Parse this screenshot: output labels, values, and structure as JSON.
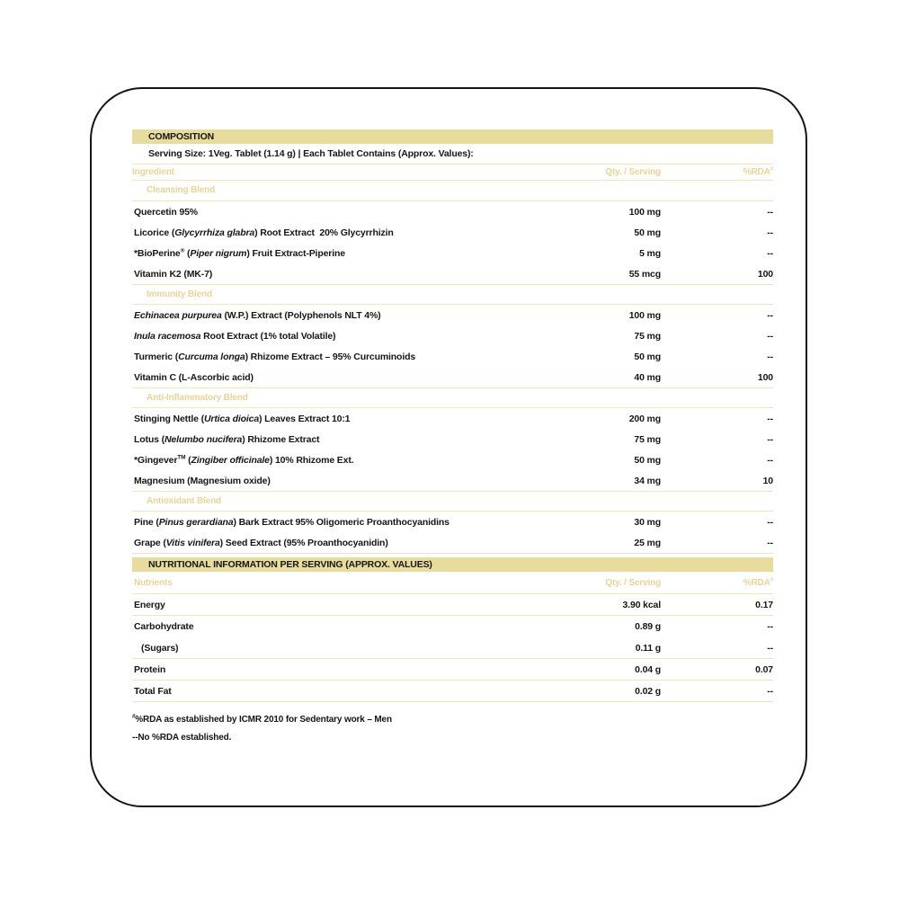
{
  "colors": {
    "bar_background": "#e7dc9c",
    "gold_text": "#e9d494",
    "divider": "#efe5b6",
    "text": "#161616",
    "card_border": "#141414",
    "page_background": "#ffffff"
  },
  "composition": {
    "title": "COMPOSITION",
    "serving_line": "Serving Size: 1Veg. Tablet (1.14 g) | Each Tablet Contains (Approx. Values):",
    "columns": {
      "ingredient": "Ingredient",
      "qty": "Qty. / Serving",
      "rda_html": "%RDA<sup>#</sup>"
    },
    "sections": [
      {
        "name": "Cleansing Blend",
        "rows": [
          {
            "name_html": "Quercetin 95%",
            "qty": "100 mg",
            "rda": "--"
          },
          {
            "name_html": "Licorice (<i>Glycyrrhiza glabra</i>) Root Extract&nbsp; 20% Glycyrrhizin",
            "qty": "50 mg",
            "rda": "--"
          },
          {
            "name_html": "*BioPerine<sup>®</sup> (<i>Piper nigrum</i>) Fruit Extract-Piperine",
            "qty": "5 mg",
            "rda": "--"
          },
          {
            "name_html": "Vitamin K2 (MK-7)",
            "qty": "55 mcg",
            "rda": "100"
          }
        ]
      },
      {
        "name": "Immunity Blend",
        "rows": [
          {
            "name_html": "<i>Echinacea purpurea</i> (W.P.) Extract (Polyphenols NLT 4%)",
            "qty": "100 mg",
            "rda": "--"
          },
          {
            "name_html": "<i>Inula racemosa</i> Root Extract (1% total Volatile)",
            "qty": "75 mg",
            "rda": "--"
          },
          {
            "name_html": "Turmeric (<i>Curcuma longa</i>) Rhizome Extract – 95% Curcuminoids",
            "qty": "50 mg",
            "rda": "--"
          },
          {
            "name_html": "Vitamin C (L-Ascorbic acid)",
            "qty": "40 mg",
            "rda": "100"
          }
        ]
      },
      {
        "name": "Anti-Inflammatory Blend",
        "rows": [
          {
            "name_html": "Stinging Nettle (<i>Urtica dioica</i>) Leaves Extract 10:1",
            "qty": "200 mg",
            "rda": "--"
          },
          {
            "name_html": "Lotus (<i>Nelumbo nucifera</i>) Rhizome Extract",
            "qty": "75 mg",
            "rda": "--"
          },
          {
            "name_html": "*Gingever<sup>TM</sup> (<i>Zingiber officinale</i>) 10% Rhizome Ext.",
            "qty": "50 mg",
            "rda": "--"
          },
          {
            "name_html": "Magnesium (Magnesium oxide)",
            "qty": "34 mg",
            "rda": "10"
          }
        ]
      },
      {
        "name": "Antioxidant Blend",
        "rows": [
          {
            "name_html": "Pine (<i>Pinus gerardiana</i>) Bark Extract 95% Oligomeric Proanthocyanidins",
            "qty": "30 mg",
            "rda": "--"
          },
          {
            "name_html": "Grape (<i>Vitis vinifera</i>) Seed Extract (95% Proanthocyanidin)",
            "qty": "25 mg",
            "rda": "--"
          }
        ]
      }
    ]
  },
  "nutrition": {
    "title": "NUTRITIONAL INFORMATION PER SERVING (APPROX. VALUES)",
    "columns": {
      "nutrients": "Nutrients",
      "qty": "Qty. / Serving",
      "rda_html": "%RDA<sup>#</sup>"
    },
    "rows": [
      {
        "name": "Energy",
        "qty": "3.90 kcal",
        "rda": "0.17"
      },
      {
        "name": "Carbohydrate",
        "qty": "0.89 g",
        "rda": "--"
      },
      {
        "name": "(Sugars)",
        "qty": "0.11 g",
        "rda": "--"
      },
      {
        "name": "Protein",
        "qty": "0.04 g",
        "rda": "0.07"
      },
      {
        "name": "Total Fat",
        "qty": "0.02 g",
        "rda": "--"
      }
    ]
  },
  "footnotes": {
    "line1_html": "<sup>#</sup>%RDA as established by ICMR 2010 for Sedentary work – Men",
    "line2": "--No %RDA established."
  }
}
